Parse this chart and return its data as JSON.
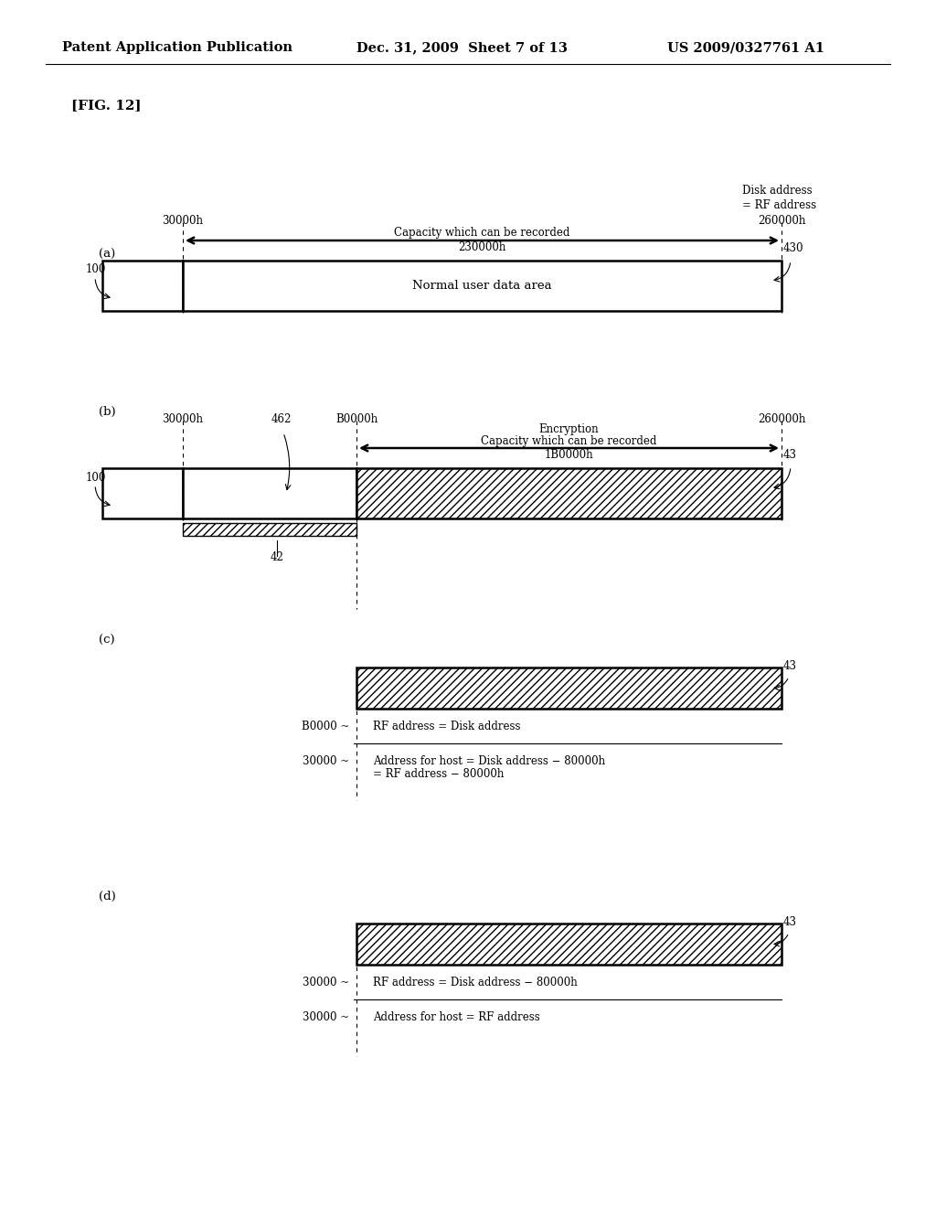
{
  "header_left": "Patent Application Publication",
  "header_mid": "Dec. 31, 2009  Sheet 7 of 13",
  "header_right": "US 2009/0327761 A1",
  "fig_label": "[FIG. 12]",
  "bg_color": "#ffffff",
  "section_a": {
    "label": "(a)",
    "addr_left": "30000h",
    "addr_right": "260000h",
    "addr_top_line1": "Disk address",
    "addr_top_line2": "= RF address",
    "arrow_label": "Capacity which can be recorded",
    "capacity_label": "230000h",
    "ref_100": "100",
    "ref_430": "430",
    "box_label": "Normal user data area"
  },
  "section_b": {
    "label": "(b)",
    "addr_left": "30000h",
    "addr_mid": "B0000h",
    "addr_right": "260000h",
    "ref_100": "100",
    "ref_462": "462",
    "ref_42": "42",
    "ref_43": "43",
    "encryption_label": "Encryption",
    "arrow_label": "Capacity which can be recorded",
    "capacity_label": "1B0000h"
  },
  "section_c": {
    "label": "(c)",
    "ref_43": "43",
    "line1_addr": "B0000 ~",
    "line1_text": "RF address = Disk address",
    "line2_addr": "30000 ~",
    "line2_text1": "Address for host = Disk address − 80000h",
    "line2_text2": "= RF address − 80000h"
  },
  "section_d": {
    "label": "(d)",
    "ref_43": "43",
    "line1_addr": "30000 ~",
    "line1_text": "RF address = Disk address − 80000h",
    "line2_addr": "30000 ~",
    "line2_text": "Address for host = RF address"
  }
}
